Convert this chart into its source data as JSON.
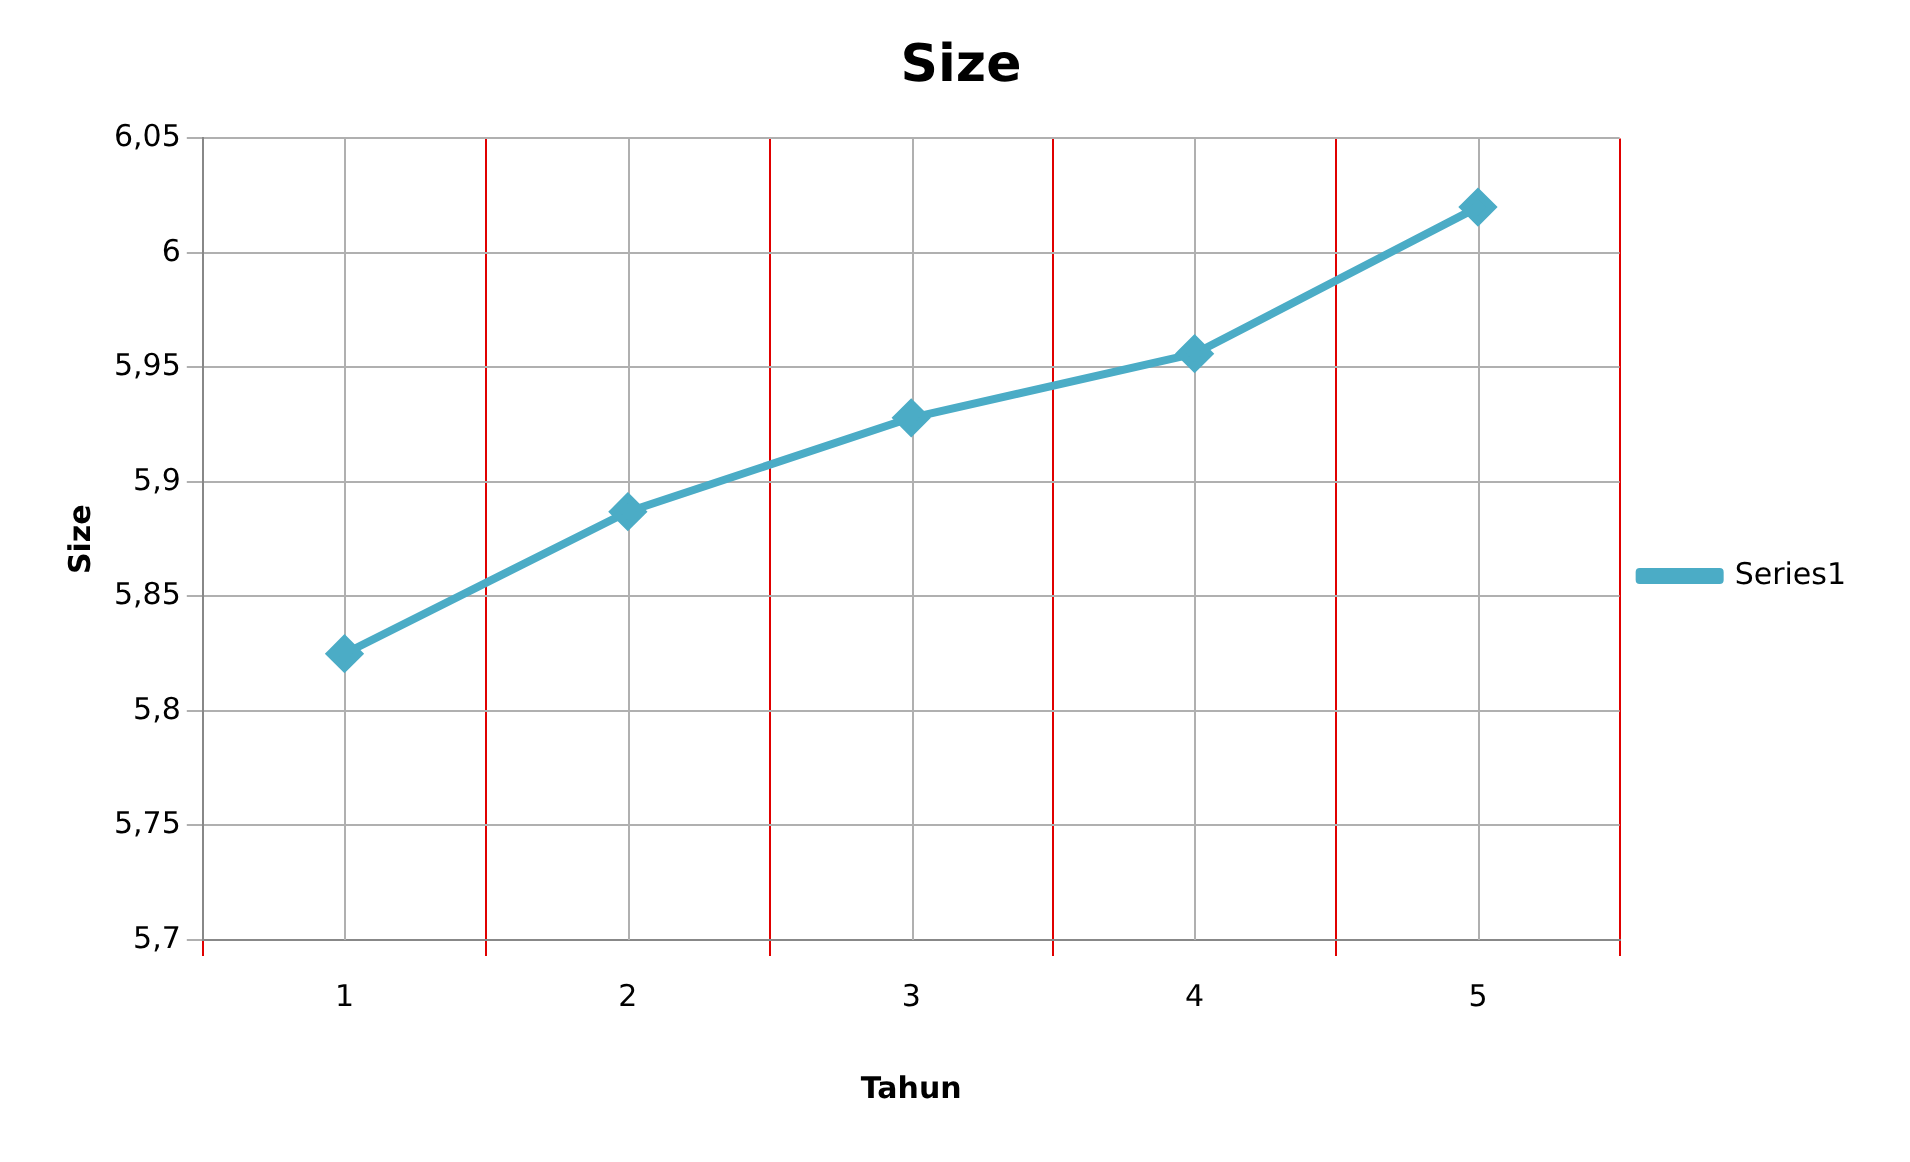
{
  "chart_data": {
    "type": "line",
    "title": "Size",
    "xlabel": "Tahun",
    "ylabel": "Size",
    "categories": [
      "1",
      "2",
      "3",
      "4",
      "5"
    ],
    "series": [
      {
        "name": "Series1",
        "color": "#4bacc6",
        "values": [
          5.825,
          5.887,
          5.928,
          5.956,
          6.02
        ]
      }
    ],
    "ylim": [
      5.7,
      6.05
    ],
    "yticks": [
      {
        "value": 5.7,
        "label": "5,7"
      },
      {
        "value": 5.75,
        "label": "5,75"
      },
      {
        "value": 5.8,
        "label": "5,8"
      },
      {
        "value": 5.85,
        "label": "5,85"
      },
      {
        "value": 5.9,
        "label": "5,9"
      },
      {
        "value": 5.95,
        "label": "5,95"
      },
      {
        "value": 6,
        "label": "6"
      },
      {
        "value": 6.05,
        "label": "6,05"
      }
    ],
    "grid": true,
    "legend": "right",
    "marker": "diamond",
    "line_style": "solid"
  }
}
